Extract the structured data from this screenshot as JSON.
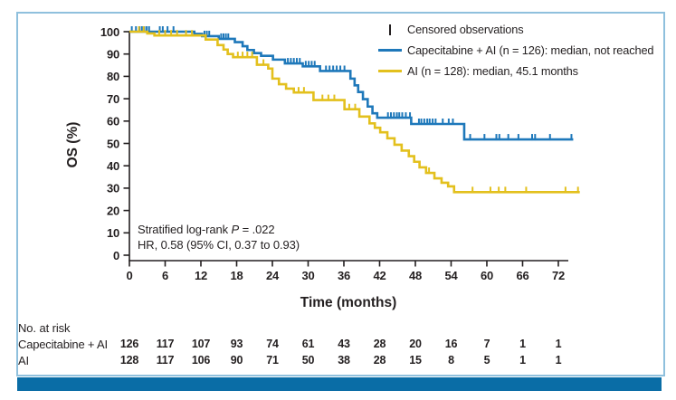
{
  "colors": {
    "frame": "#8fc0dd",
    "footer_bar": "#0a6da6",
    "axis": "#231f20",
    "capecitabine_ai_line": "#1e78ba",
    "ai_line": "#e3c01d"
  },
  "axes": {
    "y_label": "OS (%)",
    "x_label": "Time (months)"
  },
  "legend": {
    "censored_label": "Censored observations",
    "series": [
      {
        "label": "Capecitabine + AI (n = 126): median, not reached"
      },
      {
        "label": "AI (n = 128): median, 45.1 months"
      }
    ]
  },
  "annotation": {
    "line1_prefix": "Stratified log-rank ",
    "line1_italic": "P",
    "line1_suffix": " = .022",
    "line2": "HR, 0.58 (95% CI, 0.37 to 0.93)"
  },
  "risk_table": {
    "title": "No. at risk",
    "rows": [
      {
        "label": "Capecitabine + AI",
        "values": [
          126,
          117,
          107,
          93,
          74,
          61,
          43,
          28,
          20,
          16,
          7,
          1,
          1
        ]
      },
      {
        "label": "AI",
        "values": [
          128,
          117,
          106,
          90,
          71,
          50,
          38,
          28,
          15,
          8,
          5,
          1,
          1
        ]
      }
    ]
  },
  "chart_data": {
    "type": "line",
    "subtype": "kaplan_meier_step",
    "title": "",
    "xlabel": "Time (months)",
    "ylabel": "OS (%)",
    "xlim": [
      0,
      76
    ],
    "ylim": [
      0,
      100
    ],
    "x_ticks": [
      0,
      6,
      12,
      18,
      24,
      30,
      36,
      42,
      48,
      54,
      60,
      66,
      72
    ],
    "y_ticks": [
      0,
      10,
      20,
      30,
      40,
      50,
      60,
      70,
      80,
      90,
      100
    ],
    "grid": false,
    "legend_position": "top-right",
    "annotations": [
      "Stratified log-rank P = .022",
      "HR, 0.58 (95% CI, 0.37 to 0.93)"
    ],
    "series": [
      {
        "name": "Capecitabine + AI",
        "n": 126,
        "median": "not reached",
        "color": "#1e78ba",
        "steps": [
          [
            0,
            100
          ],
          [
            10.9,
            99
          ],
          [
            12.2,
            98
          ],
          [
            15,
            96.8
          ],
          [
            17.7,
            95.3
          ],
          [
            19,
            93.5
          ],
          [
            19.8,
            91.8
          ],
          [
            20.9,
            90.4
          ],
          [
            22.1,
            89.2
          ],
          [
            24.1,
            87.5
          ],
          [
            26.1,
            85.8
          ],
          [
            29.1,
            84.5
          ],
          [
            32,
            82.4
          ],
          [
            37.1,
            79
          ],
          [
            37.8,
            76
          ],
          [
            38.4,
            73
          ],
          [
            39.2,
            69.8
          ],
          [
            40,
            66.5
          ],
          [
            40.8,
            63.5
          ],
          [
            41.6,
            61.5
          ],
          [
            47.3,
            58.7
          ],
          [
            56.2,
            51.8
          ]
        ],
        "end_time": 74.5,
        "censor_times": [
          0.4,
          1.1,
          1.7,
          2.1,
          2.5,
          2.9,
          3.3,
          5.1,
          5.6,
          6.4,
          7.4,
          12.6,
          13,
          13.4,
          15.4,
          15.8,
          16.2,
          16.6,
          26.6,
          27.1,
          27.6,
          28.1,
          28.6,
          29.6,
          30.1,
          30.6,
          31.1,
          33,
          33.6,
          34.2,
          34.8,
          35.4,
          36.1,
          43.4,
          43.9,
          44.4,
          44.9,
          45.3,
          45.8,
          46.4,
          47.1,
          48.6,
          49,
          49.5,
          50,
          50.4,
          50.9,
          51.4,
          52.6,
          53.6,
          54.3,
          57.2,
          59.6,
          61.6,
          62.1,
          63.6,
          65.3,
          67.6,
          68.1,
          70.6,
          74.2
        ]
      },
      {
        "name": "AI",
        "n": 128,
        "median": "45.1 months",
        "color": "#e3c01d",
        "steps": [
          [
            0,
            100
          ],
          [
            3,
            99.2
          ],
          [
            4.2,
            98.3
          ],
          [
            12.8,
            96.5
          ],
          [
            14.8,
            94
          ],
          [
            15.8,
            92
          ],
          [
            16.5,
            90
          ],
          [
            17.4,
            88.6
          ],
          [
            21.4,
            85.2
          ],
          [
            23.3,
            83.5
          ],
          [
            24,
            79
          ],
          [
            25.1,
            76.5
          ],
          [
            26.3,
            74.5
          ],
          [
            27.6,
            72.8
          ],
          [
            30.9,
            69.4
          ],
          [
            36.1,
            65.3
          ],
          [
            38.6,
            62
          ],
          [
            40.3,
            59
          ],
          [
            41.2,
            57
          ],
          [
            42.1,
            55
          ],
          [
            43.3,
            52.3
          ],
          [
            44.5,
            49.4
          ],
          [
            45.7,
            46.8
          ],
          [
            46.9,
            44.3
          ],
          [
            47.8,
            41.8
          ],
          [
            48.7,
            39.3
          ],
          [
            49.8,
            36.8
          ],
          [
            51.2,
            34.4
          ],
          [
            52.4,
            32.4
          ],
          [
            53.5,
            30.8
          ],
          [
            54.5,
            28.2
          ]
        ],
        "end_time": 75.6,
        "censor_times": [
          1.6,
          2.4,
          5,
          6,
          7,
          8,
          9.5,
          10.5,
          18.2,
          19,
          19.8,
          20.6,
          22.5,
          28.4,
          29.3,
          32.4,
          33.4,
          34.4,
          36.9,
          37.9,
          50.3,
          57.6,
          60.6,
          62,
          63.1,
          66.6,
          73.2,
          75.3
        ]
      }
    ]
  }
}
